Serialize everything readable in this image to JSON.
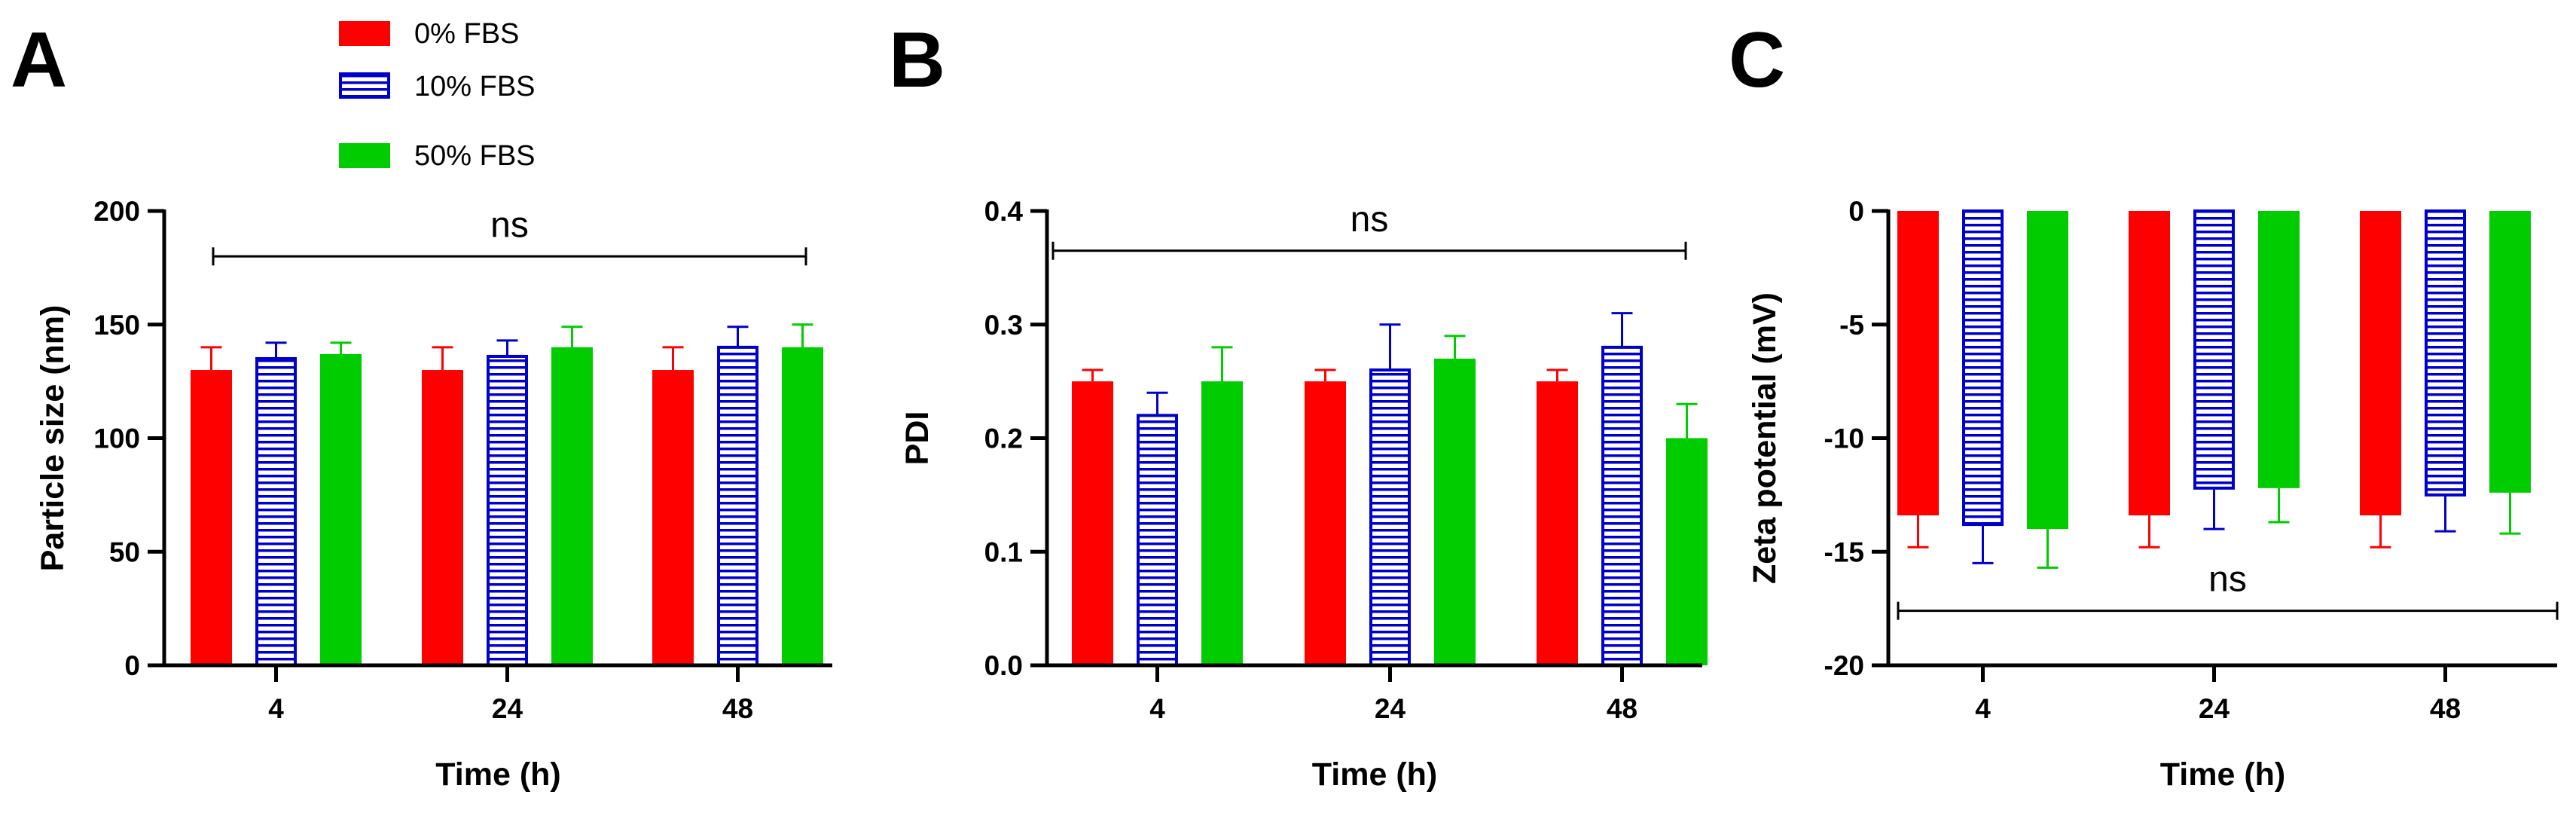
{
  "legend": [
    {
      "label": "0% FBS",
      "color": "#ff0000",
      "pattern": "solid"
    },
    {
      "label": "10% FBS",
      "color": "#0000cc",
      "pattern": "horizontal-stripes"
    },
    {
      "label": "50% FBS",
      "color": "#00cc00",
      "pattern": "solid"
    }
  ],
  "chart_data": [
    {
      "panel": "A",
      "type": "bar",
      "categories": [
        "4",
        "24",
        "48"
      ],
      "series": [
        {
          "name": "0% FBS",
          "color": "#ff0000",
          "values": [
            130,
            130,
            130
          ],
          "errors": [
            10,
            10,
            10
          ]
        },
        {
          "name": "10% FBS",
          "color": "#0000cc",
          "values": [
            135,
            136,
            140
          ],
          "errors": [
            7,
            7,
            9
          ]
        },
        {
          "name": "50% FBS",
          "color": "#00cc00",
          "values": [
            137,
            140,
            140
          ],
          "errors": [
            5,
            9,
            10
          ]
        }
      ],
      "xlabel": "Time (h)",
      "ylabel": "Particle size (nm)",
      "ylim": [
        0,
        200
      ],
      "yticks": [
        {
          "v": 0,
          "label": "0"
        },
        {
          "v": 50,
          "label": "50"
        },
        {
          "v": 100,
          "label": "100"
        },
        {
          "v": 150,
          "label": "150"
        },
        {
          "v": 200,
          "label": "200"
        }
      ],
      "significance": {
        "label": "ns",
        "y": 180
      },
      "show_legend": true
    },
    {
      "panel": "B",
      "type": "bar",
      "categories": [
        "4",
        "24",
        "48"
      ],
      "series": [
        {
          "name": "0% FBS",
          "color": "#ff0000",
          "values": [
            0.25,
            0.25,
            0.25
          ],
          "errors": [
            0.01,
            0.01,
            0.01
          ]
        },
        {
          "name": "10% FBS",
          "color": "#0000cc",
          "values": [
            0.22,
            0.26,
            0.28
          ],
          "errors": [
            0.02,
            0.04,
            0.03
          ]
        },
        {
          "name": "50% FBS",
          "color": "#00cc00",
          "values": [
            0.25,
            0.27,
            0.2
          ],
          "errors": [
            0.03,
            0.02,
            0.03
          ]
        }
      ],
      "xlabel": "Time (h)",
      "ylabel": "PDI",
      "ylim": [
        0,
        0.4
      ],
      "yticks": [
        {
          "v": 0,
          "label": "0.0"
        },
        {
          "v": 0.1,
          "label": "0.1"
        },
        {
          "v": 0.2,
          "label": "0.2"
        },
        {
          "v": 0.3,
          "label": "0.3"
        },
        {
          "v": 0.4,
          "label": "0.4"
        }
      ],
      "significance": {
        "label": "ns",
        "y": 0.365
      },
      "show_legend": false
    },
    {
      "panel": "C",
      "type": "bar",
      "categories": [
        "4",
        "24",
        "48"
      ],
      "series": [
        {
          "name": "0% FBS",
          "color": "#ff0000",
          "values": [
            -13.4,
            -13.4,
            -13.4
          ],
          "errors": [
            1.4,
            1.4,
            1.4
          ]
        },
        {
          "name": "10% FBS",
          "color": "#0000cc",
          "values": [
            -13.8,
            -12.2,
            -12.5
          ],
          "errors": [
            1.7,
            1.8,
            1.6
          ]
        },
        {
          "name": "50% FBS",
          "color": "#00cc00",
          "values": [
            -14.0,
            -12.2,
            -12.4
          ],
          "errors": [
            1.7,
            1.5,
            1.8
          ]
        }
      ],
      "xlabel": "Time (h)",
      "ylabel": "Zeta potential (mV)",
      "ylim": [
        -20,
        0
      ],
      "yticks": [
        {
          "v": 0,
          "label": "0"
        },
        {
          "v": -5,
          "label": "-5"
        },
        {
          "v": -10,
          "label": "-10"
        },
        {
          "v": -15,
          "label": "-15"
        },
        {
          "v": -20,
          "label": "-20"
        }
      ],
      "significance": {
        "label": "ns",
        "y": -17.6
      },
      "show_legend": false
    }
  ]
}
